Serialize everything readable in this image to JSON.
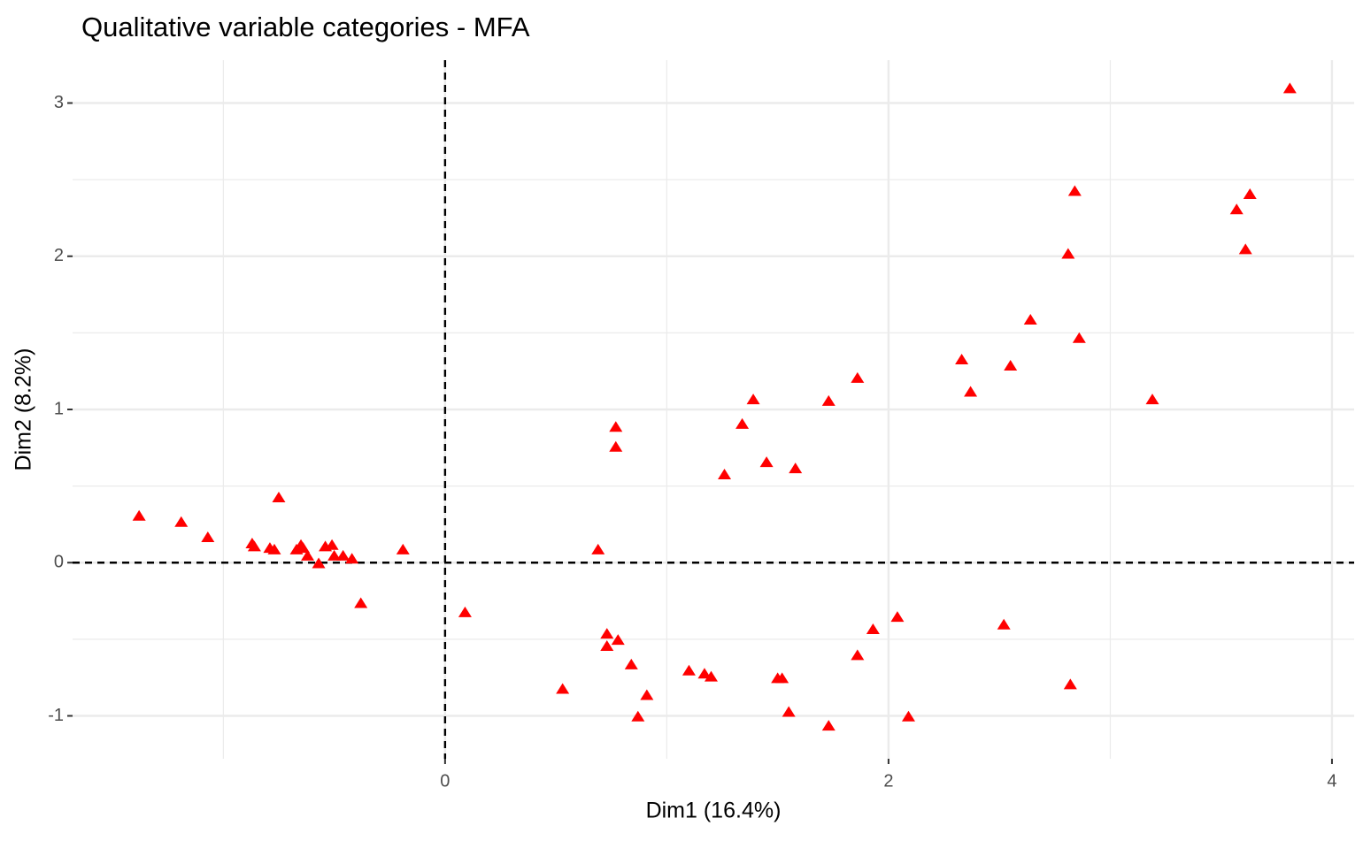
{
  "chart_data": {
    "type": "scatter",
    "title": "Qualitative variable categories - MFA",
    "x_label": "Dim1 (16.4%)",
    "y_label": "Dim2 (8.2%)",
    "xlim": [
      -1.68,
      4.1
    ],
    "ylim": [
      -1.28,
      3.28
    ],
    "xticks": [
      0,
      2,
      4
    ],
    "yticks": [
      -1,
      0,
      1,
      2,
      3
    ],
    "grid": true,
    "minor_grid": true,
    "reference_lines": true,
    "color": "#ff0000",
    "marker": "triangle",
    "x": [
      -1.38,
      -1.19,
      -1.07,
      -0.87,
      -0.86,
      -0.79,
      -0.77,
      -0.75,
      -0.67,
      -0.65,
      -0.64,
      -0.62,
      -0.57,
      -0.54,
      -0.51,
      -0.5,
      -0.46,
      -0.42,
      -0.38,
      -0.19,
      0.09,
      0.53,
      0.69,
      0.73,
      0.73,
      0.77,
      0.77,
      0.78,
      0.84,
      0.87,
      0.91,
      1.1,
      1.17,
      1.2,
      1.26,
      1.34,
      1.39,
      1.45,
      1.5,
      1.52,
      1.55,
      1.58,
      1.73,
      1.73,
      1.86,
      1.86,
      1.93,
      2.04,
      2.09,
      2.33,
      2.37,
      2.52,
      2.55,
      2.64,
      2.81,
      2.82,
      2.84,
      2.86,
      3.19,
      3.57,
      3.61,
      3.63,
      3.81
    ],
    "values": [
      0.3,
      0.26,
      0.16,
      0.12,
      0.1,
      0.09,
      0.08,
      0.42,
      0.08,
      0.11,
      0.09,
      0.04,
      -0.01,
      0.1,
      0.11,
      0.04,
      0.04,
      0.02,
      -0.27,
      0.08,
      -0.33,
      -0.83,
      0.08,
      -0.47,
      -0.55,
      0.88,
      0.75,
      -0.51,
      -0.67,
      -1.01,
      -0.87,
      -0.71,
      -0.73,
      -0.75,
      0.57,
      0.9,
      1.06,
      0.65,
      -0.76,
      -0.76,
      -0.98,
      0.61,
      1.05,
      -1.07,
      -0.61,
      1.2,
      -0.44,
      -0.36,
      -1.01,
      1.32,
      1.11,
      -0.41,
      1.28,
      1.58,
      2.01,
      -0.8,
      2.42,
      1.46,
      1.06,
      2.3,
      2.04,
      2.4,
      3.09
    ]
  }
}
